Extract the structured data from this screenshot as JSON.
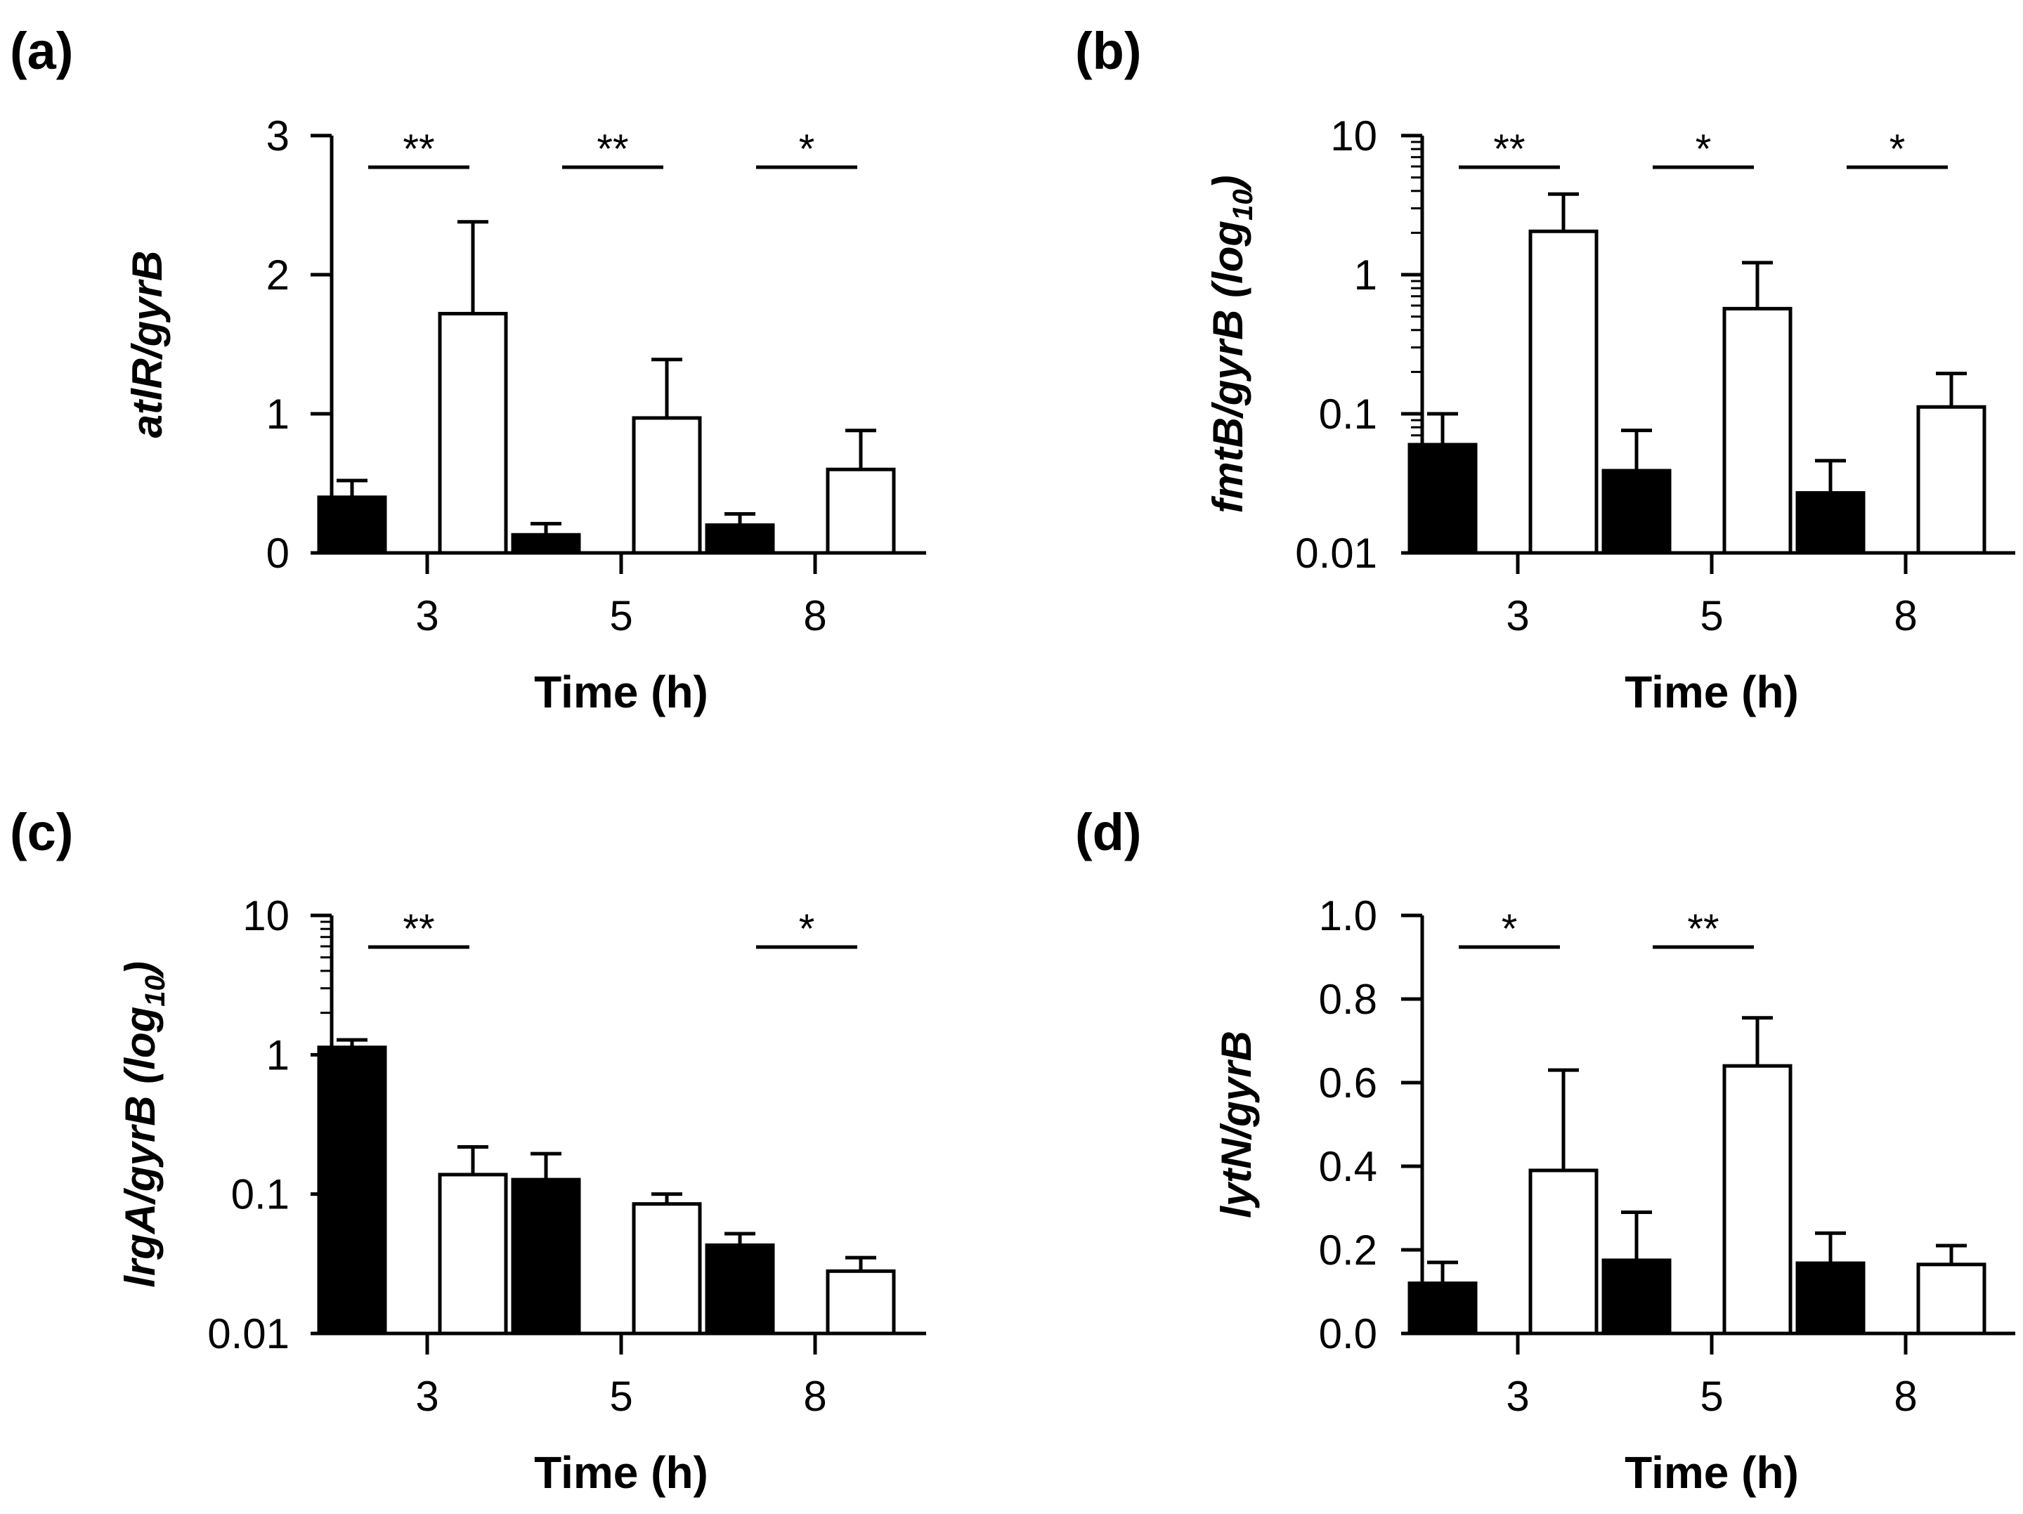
{
  "chart_data": [
    {
      "panel": "(a)",
      "type": "bar",
      "scale": "linear",
      "ylim": [
        0,
        3
      ],
      "yticks": [
        {
          "v": 0,
          "label": "0"
        },
        {
          "v": 1,
          "label": "1"
        },
        {
          "v": 2,
          "label": "2"
        },
        {
          "v": 3,
          "label": "3"
        }
      ],
      "categories": [
        "3",
        "5",
        "8"
      ],
      "xlabel": "Time (h)",
      "ylabel": {
        "italic": "atlR/gyrB",
        "sub": ""
      },
      "series": [
        {
          "fill": "#000000",
          "values": [
            0.4,
            0.13,
            0.2
          ],
          "errors": [
            0.52,
            0.21,
            0.28
          ]
        },
        {
          "fill": "#ffffff",
          "values": [
            1.72,
            0.97,
            0.6
          ],
          "errors": [
            2.38,
            1.39,
            0.88
          ]
        }
      ],
      "significance": [
        {
          "index": 0,
          "stars": "**"
        },
        {
          "index": 1,
          "stars": "**"
        },
        {
          "index": 2,
          "stars": "*"
        }
      ]
    },
    {
      "panel": "(b)",
      "type": "bar",
      "scale": "log",
      "ylim": [
        0.01,
        10
      ],
      "yticks": [
        {
          "v": 0.01,
          "label": "0.01"
        },
        {
          "v": 0.1,
          "label": "0.1"
        },
        {
          "v": 1,
          "label": "1"
        },
        {
          "v": 10,
          "label": "10"
        }
      ],
      "categories": [
        "3",
        "5",
        "8"
      ],
      "xlabel": "Time (h)",
      "ylabel": {
        "italic": "fmtB/gyrB",
        "plain": " (log",
        "sub": "10",
        "close": ")"
      },
      "series": [
        {
          "fill": "#000000",
          "values": [
            0.06,
            0.039,
            0.027
          ],
          "errors": [
            0.1,
            0.076,
            0.046
          ]
        },
        {
          "fill": "#ffffff",
          "values": [
            2.05,
            0.57,
            0.112
          ],
          "errors": [
            3.8,
            1.22,
            0.195
          ]
        }
      ],
      "significance": [
        {
          "index": 0,
          "stars": "**"
        },
        {
          "index": 1,
          "stars": "*"
        },
        {
          "index": 2,
          "stars": "*"
        }
      ]
    },
    {
      "panel": "(c)",
      "type": "bar",
      "scale": "log",
      "ylim": [
        0.01,
        10
      ],
      "yticks": [
        {
          "v": 0.01,
          "label": "0.01"
        },
        {
          "v": 0.1,
          "label": "0.1"
        },
        {
          "v": 1,
          "label": "1"
        },
        {
          "v": 10,
          "label": "10"
        }
      ],
      "categories": [
        "3",
        "5",
        "8"
      ],
      "xlabel": "Time (h)",
      "ylabel": {
        "italic": "lrgA/gyrB",
        "plain": " (log",
        "sub": "10",
        "close": ")"
      },
      "series": [
        {
          "fill": "#000000",
          "values": [
            1.13,
            0.127,
            0.043
          ],
          "errors": [
            1.28,
            0.195,
            0.052
          ]
        },
        {
          "fill": "#ffffff",
          "values": [
            0.138,
            0.085,
            0.028
          ],
          "errors": [
            0.218,
            0.1,
            0.035
          ]
        }
      ],
      "significance": [
        {
          "index": 0,
          "stars": "**"
        },
        {
          "index": 2,
          "stars": "*"
        }
      ]
    },
    {
      "panel": "(d)",
      "type": "bar",
      "scale": "linear",
      "ylim": [
        0,
        1
      ],
      "yticks": [
        {
          "v": 0,
          "label": "0.0"
        },
        {
          "v": 0.2,
          "label": "0.2"
        },
        {
          "v": 0.4,
          "label": "0.4"
        },
        {
          "v": 0.6,
          "label": "0.6"
        },
        {
          "v": 0.8,
          "label": "0.8"
        },
        {
          "v": 1,
          "label": "1.0"
        }
      ],
      "categories": [
        "3",
        "5",
        "8"
      ],
      "xlabel": "Time (h)",
      "ylabel": {
        "italic": "lytN/gyrB",
        "sub": ""
      },
      "series": [
        {
          "fill": "#000000",
          "values": [
            0.12,
            0.175,
            0.168
          ],
          "errors": [
            0.17,
            0.29,
            0.24
          ]
        },
        {
          "fill": "#ffffff",
          "values": [
            0.39,
            0.64,
            0.165
          ],
          "errors": [
            0.63,
            0.755,
            0.21
          ]
        }
      ],
      "significance": [
        {
          "index": 0,
          "stars": "*"
        },
        {
          "index": 1,
          "stars": "**"
        }
      ]
    }
  ]
}
